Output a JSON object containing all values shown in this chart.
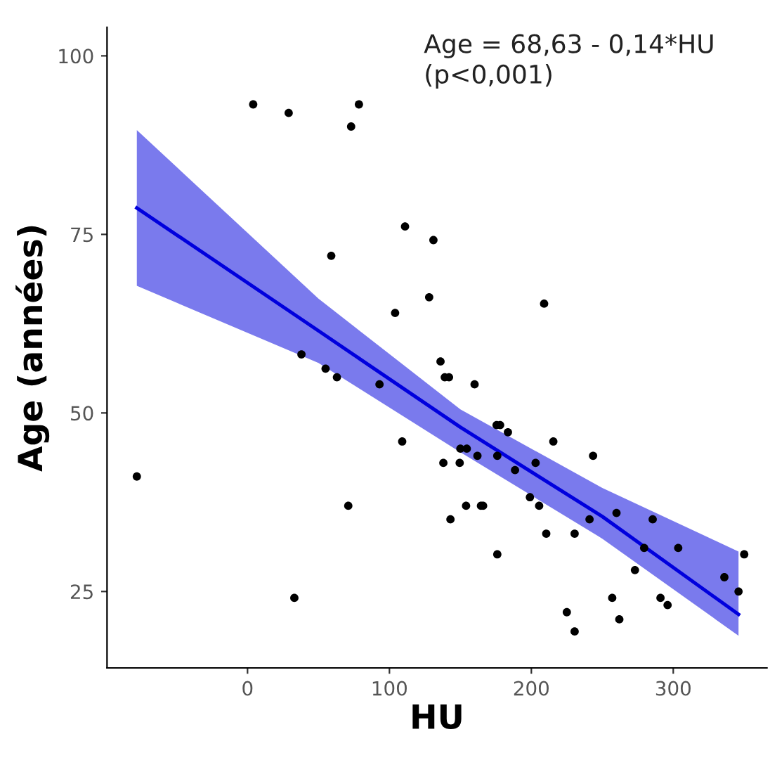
{
  "chart_data": {
    "type": "scatter",
    "xlabel": "HU",
    "ylabel": "Age (années)",
    "annotations": [
      "Age = 68,63 - 0,14*HU\n(p<0,001)"
    ],
    "xlim": [
      -99,
      366
    ],
    "xticks": [
      0,
      100,
      200,
      300
    ],
    "ylim": [
      14.3,
      104
    ],
    "yticks": [
      25,
      50,
      75,
      100
    ],
    "grid": false,
    "legend": false,
    "series": [
      {
        "color": "#000000",
        "marker": "circle",
        "x": [
          4,
          29,
          78.5,
          73,
          111,
          131,
          59,
          128,
          104,
          38,
          55,
          63,
          93,
          209,
          136,
          139,
          142,
          160,
          109,
          175.5,
          178,
          183.5,
          215.5,
          150,
          154.5,
          162,
          176,
          138,
          149.5,
          203,
          188.5,
          243.5,
          199,
          205.5,
          154,
          164.5,
          166,
          143,
          260,
          285.5,
          241,
          210.5,
          230.5,
          279.5,
          303.5,
          350,
          176,
          273,
          336,
          346,
          257,
          291,
          296,
          225,
          262,
          230.5,
          -78,
          71,
          33
        ],
        "values": [
          93.2,
          92,
          93.2,
          90.1,
          76.1,
          74.2,
          72,
          66.2,
          64,
          58.2,
          56.2,
          55,
          54,
          65.3,
          57.2,
          55,
          55,
          54,
          46,
          48.3,
          48.3,
          47.3,
          46,
          45,
          45,
          44,
          44,
          43,
          43,
          43,
          42,
          44,
          38.2,
          37,
          37,
          37,
          37,
          35.1,
          36,
          35.1,
          35.1,
          33.1,
          33.1,
          31.1,
          31.1,
          30.2,
          30.2,
          28,
          27,
          25,
          24.1,
          24.1,
          23.1,
          22.1,
          21.1,
          19.4,
          41.1,
          37,
          24.1
        ]
      },
      {
        "type": "line",
        "color": "#0000dd",
        "marker": "none",
        "x": [
          -78,
          50,
          150,
          250,
          346
        ],
        "values": [
          78.7,
          61.5,
          48.0,
          35.5,
          21.8
        ],
        "lower": [
          67.8,
          57.0,
          44.5,
          32.4,
          18.8
        ],
        "upper": [
          89.6,
          66.0,
          50.5,
          39.5,
          30.6
        ]
      }
    ]
  }
}
